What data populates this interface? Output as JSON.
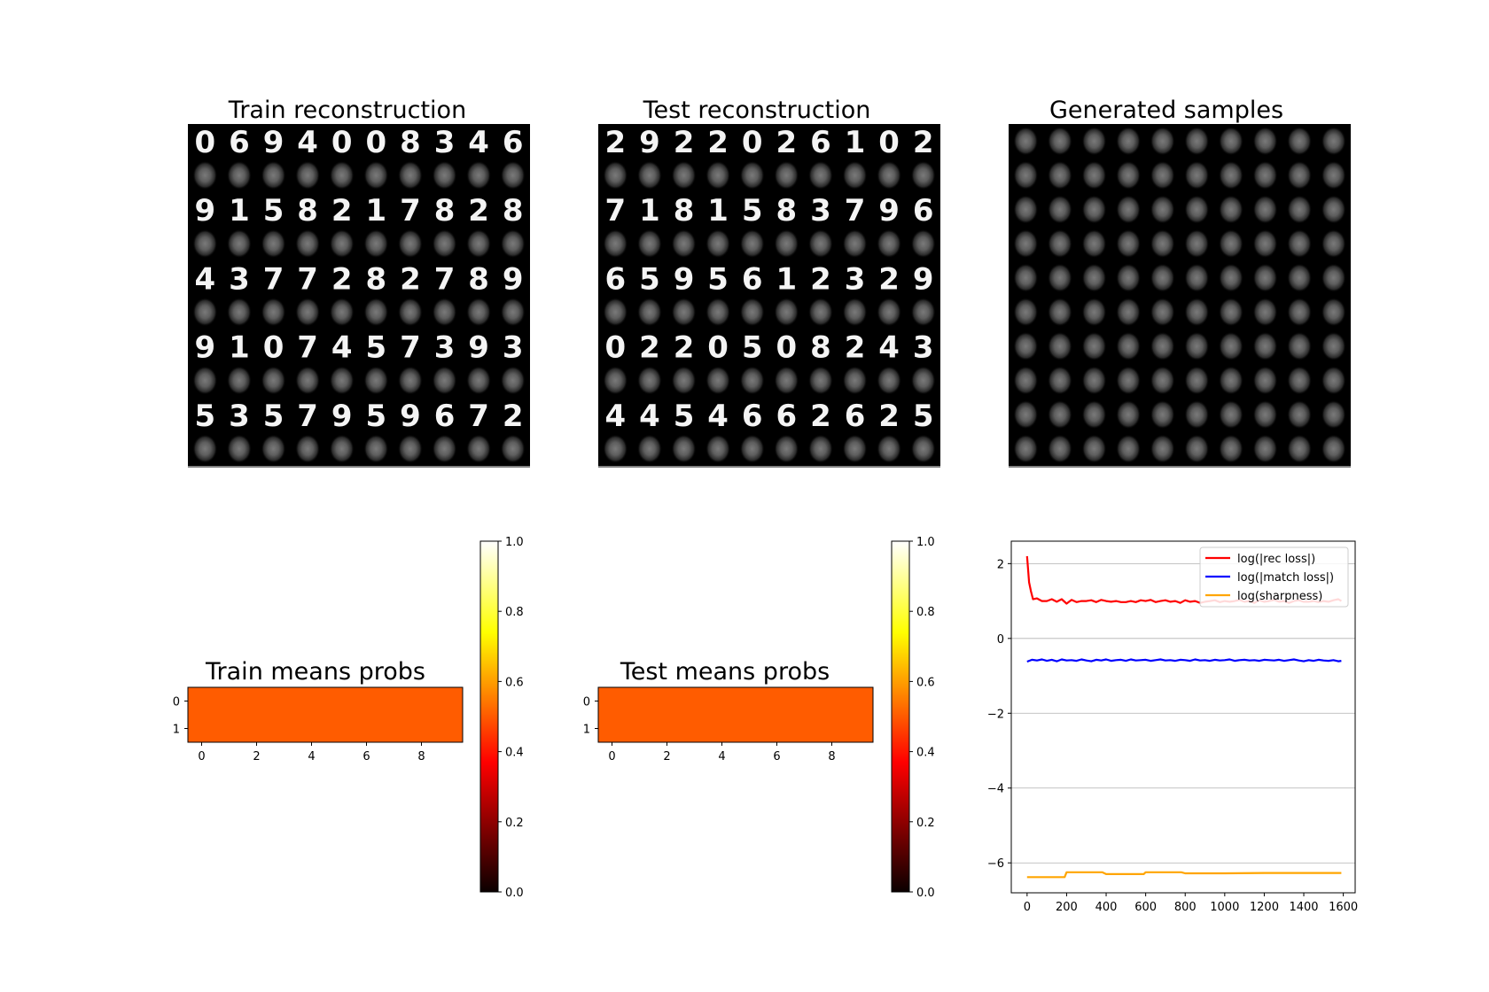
{
  "panels": {
    "train_recon": {
      "title": "Train reconstruction",
      "digit_rows": [
        [
          "0",
          "6",
          "9",
          "4",
          "0",
          "0",
          "8",
          "3",
          "4",
          "6"
        ],
        [
          "9",
          "1",
          "5",
          "8",
          "2",
          "1",
          "7",
          "8",
          "2",
          "8"
        ],
        [
          "4",
          "3",
          "7",
          "7",
          "2",
          "8",
          "2",
          "7",
          "8",
          "9"
        ],
        [
          "9",
          "1",
          "0",
          "7",
          "4",
          "5",
          "7",
          "3",
          "9",
          "3"
        ],
        [
          "5",
          "3",
          "5",
          "7",
          "9",
          "5",
          "9",
          "6",
          "7",
          "2"
        ]
      ]
    },
    "test_recon": {
      "title": "Test reconstruction",
      "digit_rows": [
        [
          "2",
          "9",
          "2",
          "2",
          "0",
          "2",
          "6",
          "1",
          "0",
          "2"
        ],
        [
          "7",
          "1",
          "8",
          "1",
          "5",
          "8",
          "3",
          "7",
          "9",
          "6"
        ],
        [
          "6",
          "5",
          "9",
          "5",
          "6",
          "1",
          "2",
          "3",
          "2",
          "9"
        ],
        [
          "0",
          "2",
          "2",
          "0",
          "5",
          "0",
          "8",
          "2",
          "4",
          "3"
        ],
        [
          "4",
          "4",
          "5",
          "4",
          "6",
          "6",
          "2",
          "6",
          "2",
          "5"
        ]
      ]
    },
    "generated": {
      "title": "Generated samples"
    }
  },
  "colorbar_ticks": [
    "0.0",
    "0.2",
    "0.4",
    "0.6",
    "0.8",
    "1.0"
  ],
  "heatmap_y_ticks": [
    "0",
    "1"
  ],
  "heatmap_x_ticks": [
    "0",
    "2",
    "4",
    "6",
    "8"
  ],
  "chart_data": [
    {
      "type": "heatmap",
      "title": "Train means probs",
      "rows": 2,
      "cols": 10,
      "values": [
        [
          0.5,
          0.5,
          0.5,
          0.5,
          0.5,
          0.5,
          0.5,
          0.5,
          0.5,
          0.5
        ],
        [
          0.5,
          0.5,
          0.5,
          0.5,
          0.5,
          0.5,
          0.5,
          0.5,
          0.5,
          0.5
        ]
      ],
      "colormap": "hot",
      "color_range": [
        0,
        1
      ]
    },
    {
      "type": "heatmap",
      "title": "Test means probs",
      "rows": 2,
      "cols": 10,
      "values": [
        [
          0.5,
          0.5,
          0.5,
          0.5,
          0.5,
          0.5,
          0.5,
          0.5,
          0.5,
          0.5
        ],
        [
          0.5,
          0.5,
          0.5,
          0.5,
          0.5,
          0.5,
          0.5,
          0.5,
          0.5,
          0.5
        ]
      ],
      "colormap": "hot",
      "color_range": [
        0,
        1
      ]
    },
    {
      "type": "line",
      "title": "",
      "xlim": [
        -80,
        1660
      ],
      "ylim": [
        -6.8,
        2.6
      ],
      "x_ticks": [
        0,
        200,
        400,
        600,
        800,
        1000,
        1200,
        1400,
        1600
      ],
      "y_ticks": [
        2,
        0,
        -2,
        -4,
        -6
      ],
      "grid": "horizontal",
      "legend": "top-right",
      "series": [
        {
          "name": "log(|rec loss|)",
          "color": "#ff0000",
          "x": [
            0,
            10,
            20,
            30,
            50,
            75,
            100,
            125,
            150,
            175,
            200,
            225,
            250,
            275,
            300,
            325,
            350,
            375,
            400,
            425,
            450,
            475,
            500,
            525,
            550,
            575,
            600,
            625,
            650,
            675,
            700,
            725,
            750,
            775,
            800,
            825,
            850,
            875,
            900,
            925,
            950,
            975,
            1000,
            1025,
            1050,
            1075,
            1100,
            1125,
            1150,
            1175,
            1200,
            1225,
            1250,
            1275,
            1300,
            1325,
            1350,
            1375,
            1400,
            1425,
            1450,
            1475,
            1500,
            1525,
            1550,
            1575,
            1590
          ],
          "y": [
            2.2,
            1.5,
            1.25,
            1.05,
            1.07,
            1.0,
            1.0,
            1.05,
            0.98,
            1.05,
            0.93,
            1.03,
            0.97,
            1.0,
            1.0,
            1.02,
            0.97,
            1.03,
            1.0,
            0.98,
            1.0,
            0.97,
            0.97,
            1.0,
            0.97,
            1.02,
            1.0,
            1.03,
            0.97,
            1.0,
            1.02,
            0.98,
            1.0,
            0.95,
            1.02,
            0.98,
            1.0,
            0.95,
            0.98,
            1.0,
            1.02,
            0.97,
            1.0,
            0.98,
            1.0,
            1.03,
            0.98,
            1.0,
            0.95,
            1.02,
            0.98,
            1.0,
            1.03,
            0.98,
            1.0,
            0.95,
            1.0,
            1.02,
            0.98,
            0.98,
            1.0,
            0.97,
            1.0,
            0.98,
            1.02,
            1.05,
            1.0
          ]
        },
        {
          "name": "log(|match loss|)",
          "color": "#0000ff",
          "x": [
            0,
            25,
            50,
            75,
            100,
            125,
            150,
            175,
            200,
            225,
            250,
            275,
            300,
            325,
            350,
            375,
            400,
            425,
            450,
            475,
            500,
            525,
            550,
            575,
            600,
            625,
            650,
            675,
            700,
            725,
            750,
            775,
            800,
            825,
            850,
            875,
            900,
            925,
            950,
            975,
            1000,
            1025,
            1050,
            1075,
            1100,
            1125,
            1150,
            1175,
            1200,
            1225,
            1250,
            1275,
            1300,
            1325,
            1350,
            1375,
            1400,
            1425,
            1450,
            1475,
            1500,
            1525,
            1550,
            1575,
            1590
          ],
          "y": [
            -0.62,
            -0.57,
            -0.59,
            -0.56,
            -0.6,
            -0.57,
            -0.61,
            -0.56,
            -0.59,
            -0.58,
            -0.6,
            -0.56,
            -0.59,
            -0.61,
            -0.57,
            -0.59,
            -0.56,
            -0.6,
            -0.58,
            -0.57,
            -0.6,
            -0.56,
            -0.59,
            -0.58,
            -0.57,
            -0.6,
            -0.58,
            -0.56,
            -0.59,
            -0.58,
            -0.6,
            -0.57,
            -0.58,
            -0.6,
            -0.56,
            -0.59,
            -0.58,
            -0.6,
            -0.57,
            -0.59,
            -0.58,
            -0.56,
            -0.6,
            -0.58,
            -0.57,
            -0.59,
            -0.58,
            -0.6,
            -0.57,
            -0.58,
            -0.59,
            -0.57,
            -0.6,
            -0.58,
            -0.56,
            -0.59,
            -0.61,
            -0.58,
            -0.6,
            -0.57,
            -0.59,
            -0.6,
            -0.58,
            -0.61,
            -0.6
          ]
        },
        {
          "name": "log(sharpness)",
          "color": "#ffa500",
          "x": [
            0,
            190,
            200,
            210,
            380,
            400,
            590,
            600,
            610,
            780,
            800,
            1000,
            1200,
            1400,
            1590
          ],
          "y": [
            -6.38,
            -6.38,
            -6.25,
            -6.25,
            -6.25,
            -6.3,
            -6.3,
            -6.25,
            -6.25,
            -6.25,
            -6.28,
            -6.28,
            -6.27,
            -6.27,
            -6.27
          ]
        }
      ]
    }
  ]
}
